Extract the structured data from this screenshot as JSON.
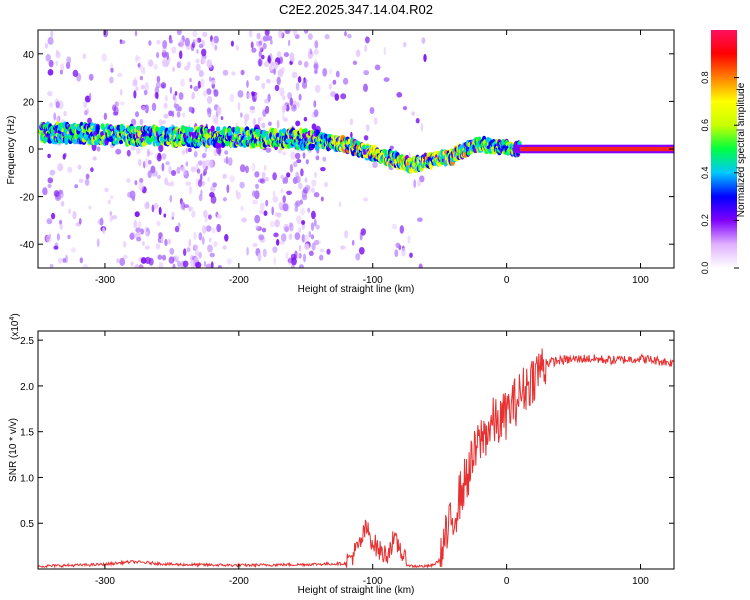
{
  "title": "C2E2.2025.347.14.04.R02",
  "colors": {
    "line": "#e83030",
    "axis": "#000000",
    "gradient": [
      "#ffffff",
      "#e0b0ff",
      "#8000ff",
      "#0000ff",
      "#00c8ff",
      "#00ff40",
      "#c8ff00",
      "#ffff00",
      "#ff8000",
      "#ff0000",
      "#ff1060"
    ]
  },
  "chart_data": [
    {
      "type": "heatmap",
      "title": "C2E2.2025.347.14.04.R02",
      "xlabel": "Height of straight line (km)",
      "ylabel": "Frequency (Hz)",
      "xlim": [
        -350,
        125
      ],
      "ylim": [
        -50,
        50
      ],
      "xticks": [
        -300,
        -200,
        -100,
        0,
        100
      ],
      "xtick_labels": [
        "-300",
        "-200",
        "-100",
        "0",
        "100"
      ],
      "yticks": [
        -40,
        -20,
        0,
        20,
        40
      ],
      "ytick_labels": [
        "-40",
        "-20",
        "0",
        "20",
        "40"
      ],
      "ridge": {
        "x": [
          -345,
          -300,
          -250,
          -200,
          -150,
          -120,
          -100,
          -80,
          -70,
          -60,
          -50,
          -40,
          -30,
          -20,
          -10,
          0,
          10,
          20,
          50,
          100,
          125
        ],
        "y": [
          7,
          6,
          5,
          5,
          4,
          2,
          -2,
          -5,
          -7,
          -5,
          -4,
          -3,
          0,
          2,
          1,
          1,
          0,
          0,
          0,
          0,
          0
        ]
      },
      "colorbar": {
        "label": "Normalized spectral amplitude",
        "range": [
          0,
          1
        ],
        "ticks": [
          0.0,
          0.2,
          0.4,
          0.6,
          0.8
        ],
        "tick_labels": [
          "0.0",
          "0.2",
          "0.4",
          "0.6",
          "0.8"
        ]
      }
    },
    {
      "type": "line",
      "xlabel": "Height of straight line (km)",
      "ylabel": "SNR (10 * v/v)",
      "exponent_label": "(x10",
      "exponent_power": "4",
      "exponent_close": ")",
      "xlim": [
        -350,
        125
      ],
      "ylim": [
        0,
        2.6
      ],
      "xticks": [
        -300,
        -200,
        -100,
        0,
        100
      ],
      "xtick_labels": [
        "-300",
        "-200",
        "-100",
        "0",
        "100"
      ],
      "yticks": [
        0.5,
        1.0,
        1.5,
        2.0,
        2.5
      ],
      "ytick_labels": [
        "0.5",
        "1.0",
        "1.5",
        "2.0",
        "2.5"
      ],
      "series": [
        {
          "name": "SNR",
          "x": [
            -350,
            -300,
            -280,
            -250,
            -200,
            -150,
            -120,
            -110,
            -105,
            -100,
            -95,
            -90,
            -85,
            -80,
            -75,
            -70,
            -65,
            -60,
            -55,
            -50,
            -45,
            -40,
            -35,
            -30,
            -25,
            -20,
            -15,
            -10,
            -5,
            0,
            5,
            10,
            15,
            20,
            25,
            30,
            40,
            60,
            80,
            100,
            125
          ],
          "y": [
            0.03,
            0.05,
            0.08,
            0.05,
            0.04,
            0.05,
            0.06,
            0.25,
            0.45,
            0.3,
            0.2,
            0.15,
            0.3,
            0.25,
            0.05,
            0.03,
            0.03,
            0.03,
            0.04,
            0.1,
            0.35,
            0.55,
            0.8,
            1.0,
            1.2,
            1.4,
            1.5,
            1.6,
            1.6,
            1.7,
            1.8,
            1.9,
            2.0,
            2.1,
            2.2,
            2.25,
            2.28,
            2.3,
            2.28,
            2.3,
            2.25
          ]
        }
      ]
    }
  ]
}
